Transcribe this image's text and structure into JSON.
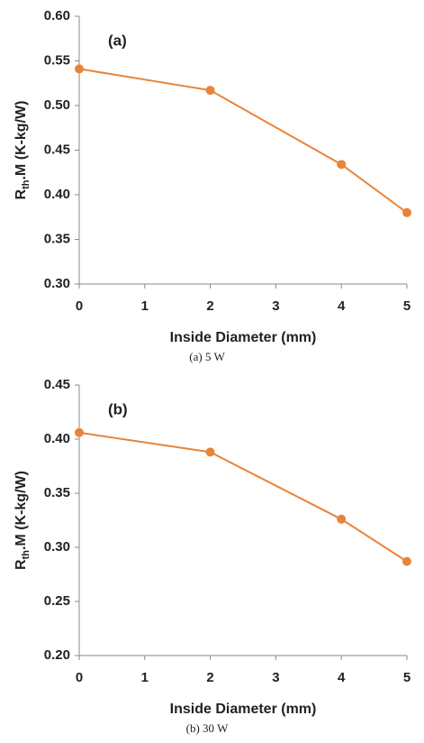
{
  "chart_data": [
    {
      "type": "line",
      "annotation": "(a)",
      "caption": "(a)  5  W",
      "xlabel": "Inside Diameter (mm)",
      "ylabel": {
        "main": "R",
        "sub": "th",
        "rest": ".M (K-kg/W)"
      },
      "x": [
        0,
        2,
        4,
        5
      ],
      "series": [
        {
          "color": "#e8843a",
          "values": [
            0.541,
            0.517,
            0.434,
            0.38
          ]
        }
      ],
      "xlim": [
        0,
        5
      ],
      "xticks": [
        0,
        1,
        2,
        3,
        4,
        5
      ],
      "ylim": [
        0.3,
        0.6
      ],
      "yticks": [
        {
          "value": 0.3,
          "label": "0.30"
        },
        0.35,
        {
          "value": 0.4,
          "label": "0.40"
        },
        0.45,
        {
          "value": 0.5,
          "label": "0.50"
        },
        0.55,
        {
          "value": 0.6,
          "label": "0.60"
        }
      ]
    },
    {
      "type": "line",
      "annotation": "(b)",
      "caption": "(b)  30  W",
      "xlabel": "Inside Diameter (mm)",
      "ylabel": {
        "main": "R",
        "sub": "th",
        "rest": ".M (K-kg/W)"
      },
      "x": [
        0,
        2,
        4,
        5
      ],
      "series": [
        {
          "color": "#e8843a",
          "values": [
            0.406,
            0.388,
            0.326,
            0.287
          ]
        }
      ],
      "xlim": [
        0,
        5
      ],
      "xticks": [
        0,
        1,
        2,
        3,
        4,
        5
      ],
      "ylim": [
        0.2,
        0.45
      ],
      "yticks": [
        {
          "value": 0.2,
          "label": "0.20"
        },
        0.25,
        {
          "value": 0.3,
          "label": "0.30"
        },
        0.35,
        {
          "value": 0.4,
          "label": "0.40"
        },
        0.45
      ]
    }
  ]
}
